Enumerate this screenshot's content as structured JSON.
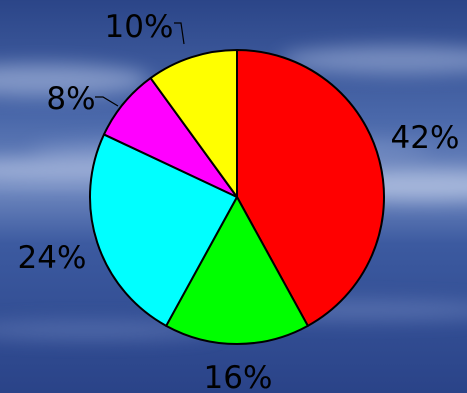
{
  "chart_data": {
    "type": "pie",
    "title": "",
    "slices": [
      {
        "label": "42%",
        "value": 42,
        "color": "#ff0000"
      },
      {
        "label": "16%",
        "value": 16,
        "color": "#00ff00"
      },
      {
        "label": "24%",
        "value": 24,
        "color": "#00ffff"
      },
      {
        "label": "8%",
        "value": 8,
        "color": "#ff00ff"
      },
      {
        "label": "10%",
        "value": 10,
        "color": "#ffff00"
      }
    ],
    "start": "top",
    "direction": "clockwise",
    "outline_color": "#000000"
  },
  "background": {
    "style": "blue cloudy sky",
    "colors": [
      "#2a4586",
      "#4a67a8",
      "#8ea3cf",
      "#1f3a7c"
    ]
  }
}
